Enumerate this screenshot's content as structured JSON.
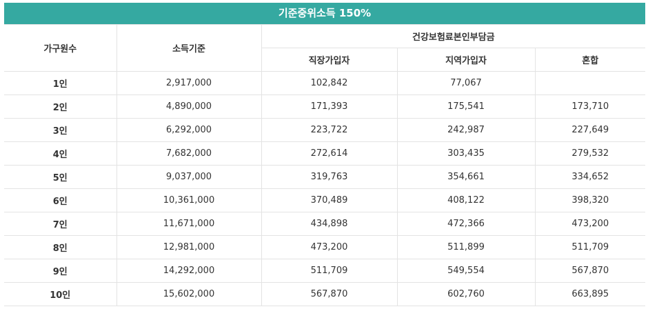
{
  "title": "기준중위소득 150%",
  "headers": {
    "household": "가구원수",
    "income": "소득기준",
    "contribution": "건강보험료본인부담금",
    "workplace": "직장가입자",
    "regional": "지역가입자",
    "mixed": "혼합"
  },
  "rows": [
    {
      "size": "1인",
      "income": "2,917,000",
      "workplace": "102,842",
      "regional": "77,067",
      "mixed": ""
    },
    {
      "size": "2인",
      "income": "4,890,000",
      "workplace": "171,393",
      "regional": "175,541",
      "mixed": "173,710"
    },
    {
      "size": "3인",
      "income": "6,292,000",
      "workplace": "223,722",
      "regional": "242,987",
      "mixed": "227,649"
    },
    {
      "size": "4인",
      "income": "7,682,000",
      "workplace": "272,614",
      "regional": "303,435",
      "mixed": "279,532"
    },
    {
      "size": "5인",
      "income": "9,037,000",
      "workplace": "319,763",
      "regional": "354,661",
      "mixed": "334,652"
    },
    {
      "size": "6인",
      "income": "10,361,000",
      "workplace": "370,489",
      "regional": "408,122",
      "mixed": "398,320"
    },
    {
      "size": "7인",
      "income": "11,671,000",
      "workplace": "434,898",
      "regional": "472,366",
      "mixed": "473,200"
    },
    {
      "size": "8인",
      "income": "12,981,000",
      "workplace": "473,200",
      "regional": "511,899",
      "mixed": "511,709"
    },
    {
      "size": "9인",
      "income": "14,292,000",
      "workplace": "511,709",
      "regional": "549,554",
      "mixed": "567,870"
    },
    {
      "size": "10인",
      "income": "15,602,000",
      "workplace": "567,870",
      "regional": "602,760",
      "mixed": "663,895"
    }
  ],
  "colors": {
    "header_bg": "#35a9a1",
    "header_text": "#ffffff",
    "border": "#e3e3e3"
  }
}
